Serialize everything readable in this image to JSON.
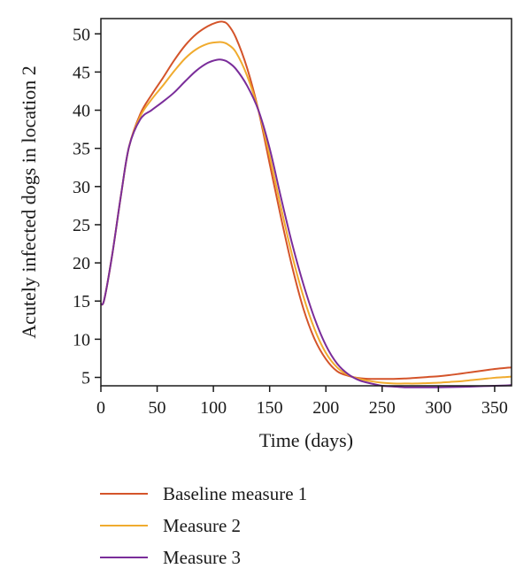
{
  "chart_data": {
    "type": "line",
    "title": "",
    "xlabel": "Time (days)",
    "ylabel": "Acutely infected dogs in location 2",
    "xlim": [
      0,
      365
    ],
    "ylim": [
      3.9,
      52
    ],
    "xticks": [
      0,
      50,
      100,
      150,
      200,
      250,
      300,
      350
    ],
    "yticks": [
      5,
      10,
      15,
      20,
      25,
      30,
      35,
      40,
      45,
      50
    ],
    "grid": false,
    "legend": "bottom",
    "series": [
      {
        "name": "Baseline measure 1",
        "color": "#d4542a",
        "x": [
          0,
          3,
          10,
          18,
          25,
          35,
          45,
          55,
          65,
          75,
          85,
          95,
          103,
          108,
          113,
          120,
          130,
          140,
          150,
          160,
          170,
          180,
          190,
          200,
          210,
          220,
          230,
          240,
          250,
          260,
          270,
          280,
          290,
          300,
          310,
          320,
          330,
          340,
          350,
          360,
          365
        ],
        "y": [
          14.6,
          15.2,
          21,
          29,
          35.2,
          39.5,
          42,
          44.2,
          46.5,
          48.5,
          50,
          51,
          51.5,
          51.6,
          51.2,
          49.5,
          45.5,
          40,
          33,
          26,
          19.5,
          14,
          10,
          7.4,
          5.8,
          5.2,
          4.9,
          4.8,
          4.8,
          4.8,
          4.85,
          4.95,
          5.05,
          5.15,
          5.3,
          5.5,
          5.7,
          5.9,
          6.1,
          6.25,
          6.3
        ]
      },
      {
        "name": "Measure 2",
        "color": "#f0ab2e",
        "x": [
          0,
          3,
          10,
          18,
          25,
          35,
          45,
          55,
          65,
          75,
          85,
          95,
          103,
          108,
          113,
          120,
          130,
          140,
          150,
          160,
          170,
          180,
          190,
          200,
          210,
          220,
          230,
          240,
          250,
          260,
          270,
          280,
          290,
          300,
          310,
          320,
          330,
          340,
          350,
          360,
          365
        ],
        "y": [
          14.6,
          15.2,
          21,
          29,
          35.2,
          39.2,
          41.4,
          43.2,
          45.1,
          46.8,
          48,
          48.7,
          48.9,
          48.9,
          48.6,
          47.6,
          44.5,
          40,
          34,
          27.3,
          21,
          15.6,
          11.3,
          8.2,
          6.3,
          5.3,
          4.8,
          4.5,
          4.3,
          4.2,
          4.2,
          4.2,
          4.25,
          4.3,
          4.4,
          4.5,
          4.65,
          4.8,
          4.95,
          5.05,
          5.1
        ]
      },
      {
        "name": "Measure 3",
        "color": "#7a2d9a",
        "x": [
          0,
          3,
          10,
          18,
          25,
          35,
          45,
          55,
          65,
          75,
          85,
          95,
          103,
          108,
          113,
          120,
          130,
          140,
          150,
          160,
          170,
          180,
          190,
          200,
          210,
          220,
          230,
          240,
          250,
          260,
          270,
          280,
          290,
          300,
          310,
          320,
          330,
          340,
          350,
          360,
          365
        ],
        "y": [
          14.6,
          15.2,
          21,
          29,
          35.2,
          38.8,
          40,
          41.1,
          42.3,
          43.8,
          45.2,
          46.2,
          46.6,
          46.6,
          46.3,
          45.4,
          43.2,
          40,
          35,
          28.6,
          22.5,
          17.2,
          12.7,
          9.2,
          6.8,
          5.4,
          4.6,
          4.2,
          3.9,
          3.8,
          3.7,
          3.7,
          3.7,
          3.7,
          3.72,
          3.75,
          3.8,
          3.85,
          3.9,
          3.95,
          4
        ]
      }
    ]
  }
}
